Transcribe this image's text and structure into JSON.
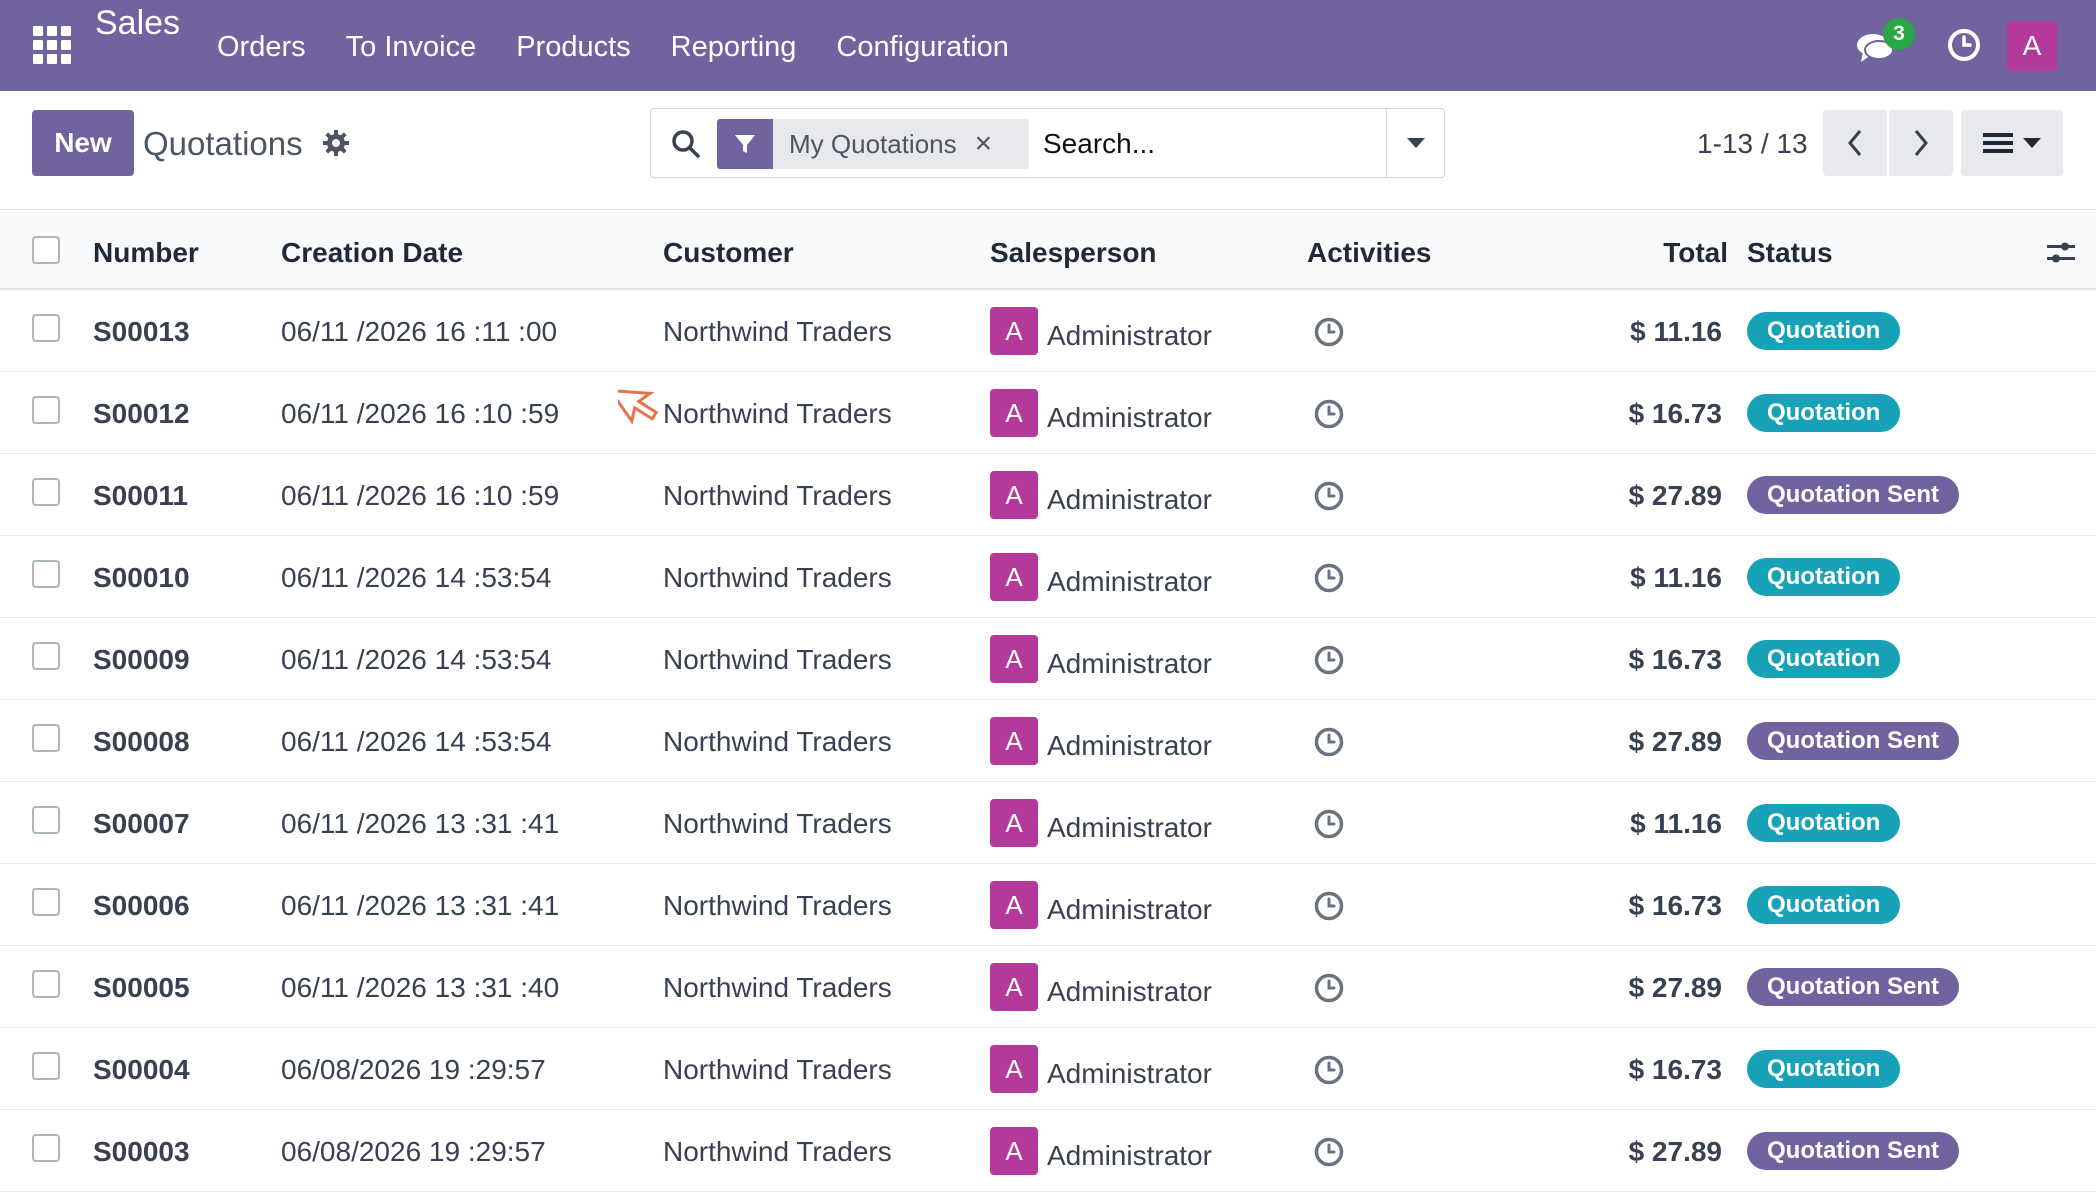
{
  "app": {
    "title": "Sales"
  },
  "nav": {
    "items": [
      "Orders",
      "To Invoice",
      "Products",
      "Reporting",
      "Configuration"
    ]
  },
  "systray": {
    "chat_count": "3",
    "user_initial": "A"
  },
  "control_panel": {
    "new_label": "New",
    "title": "Quotations",
    "search": {
      "facet_label": "My Quotations",
      "placeholder": "Search..."
    },
    "pager": {
      "value": "1-13 / 13"
    }
  },
  "table": {
    "headers": {
      "number": "Number",
      "creation_date": "Creation Date",
      "customer": "Customer",
      "salesperson": "Salesperson",
      "activities": "Activities",
      "total": "Total",
      "status": "Status"
    },
    "rows": [
      {
        "number": "S00013",
        "date": "06/11 /2026 16 :11 :00",
        "customer": "Northwind Traders",
        "sp_initial": "A",
        "salesperson": "Administrator",
        "total": "$ 11.16",
        "status": "Quotation",
        "status_kind": "q"
      },
      {
        "number": "S00012",
        "date": "06/11 /2026 16 :10 :59",
        "customer": "Northwind Traders",
        "sp_initial": "A",
        "salesperson": "Administrator",
        "total": "$ 16.73",
        "status": "Quotation",
        "status_kind": "q"
      },
      {
        "number": "S00011",
        "date": "06/11 /2026 16 :10 :59",
        "customer": "Northwind Traders",
        "sp_initial": "A",
        "salesperson": "Administrator",
        "total": "$ 27.89",
        "status": "Quotation Sent",
        "status_kind": "s"
      },
      {
        "number": "S00010",
        "date": "06/11 /2026 14 :53:54",
        "customer": "Northwind Traders",
        "sp_initial": "A",
        "salesperson": "Administrator",
        "total": "$ 11.16",
        "status": "Quotation",
        "status_kind": "q"
      },
      {
        "number": "S00009",
        "date": "06/11 /2026 14 :53:54",
        "customer": "Northwind Traders",
        "sp_initial": "A",
        "salesperson": "Administrator",
        "total": "$ 16.73",
        "status": "Quotation",
        "status_kind": "q"
      },
      {
        "number": "S00008",
        "date": "06/11 /2026 14 :53:54",
        "customer": "Northwind Traders",
        "sp_initial": "A",
        "salesperson": "Administrator",
        "total": "$ 27.89",
        "status": "Quotation Sent",
        "status_kind": "s"
      },
      {
        "number": "S00007",
        "date": "06/11 /2026 13 :31 :41",
        "customer": "Northwind Traders",
        "sp_initial": "A",
        "salesperson": "Administrator",
        "total": "$ 11.16",
        "status": "Quotation",
        "status_kind": "q"
      },
      {
        "number": "S00006",
        "date": "06/11 /2026 13 :31 :41",
        "customer": "Northwind Traders",
        "sp_initial": "A",
        "salesperson": "Administrator",
        "total": "$ 16.73",
        "status": "Quotation",
        "status_kind": "q"
      },
      {
        "number": "S00005",
        "date": "06/11 /2026 13 :31 :40",
        "customer": "Northwind Traders",
        "sp_initial": "A",
        "salesperson": "Administrator",
        "total": "$ 27.89",
        "status": "Quotation Sent",
        "status_kind": "s"
      },
      {
        "number": "S00004",
        "date": "06/08/2026 19 :29:57",
        "customer": "Northwind Traders",
        "sp_initial": "A",
        "salesperson": "Administrator",
        "total": "$ 16.73",
        "status": "Quotation",
        "status_kind": "q"
      },
      {
        "number": "S00003",
        "date": "06/08/2026 19 :29:57",
        "customer": "Northwind Traders",
        "sp_initial": "A",
        "salesperson": "Administrator",
        "total": "$ 27.89",
        "status": "Quotation Sent",
        "status_kind": "s"
      }
    ]
  },
  "colors": {
    "brand": "#71639e",
    "quotation": "#17a2b8",
    "quotation_sent": "#71639e",
    "avatar": "#b5399a",
    "chat_badge": "#28a745"
  },
  "icons": [
    "apps-icon",
    "chat-icon",
    "clock-icon",
    "gear-icon",
    "search-icon",
    "filter-icon",
    "close-icon",
    "caret-down-icon",
    "chevron-left-icon",
    "chevron-right-icon",
    "list-view-icon",
    "column-settings-icon",
    "activity-clock-icon"
  ]
}
